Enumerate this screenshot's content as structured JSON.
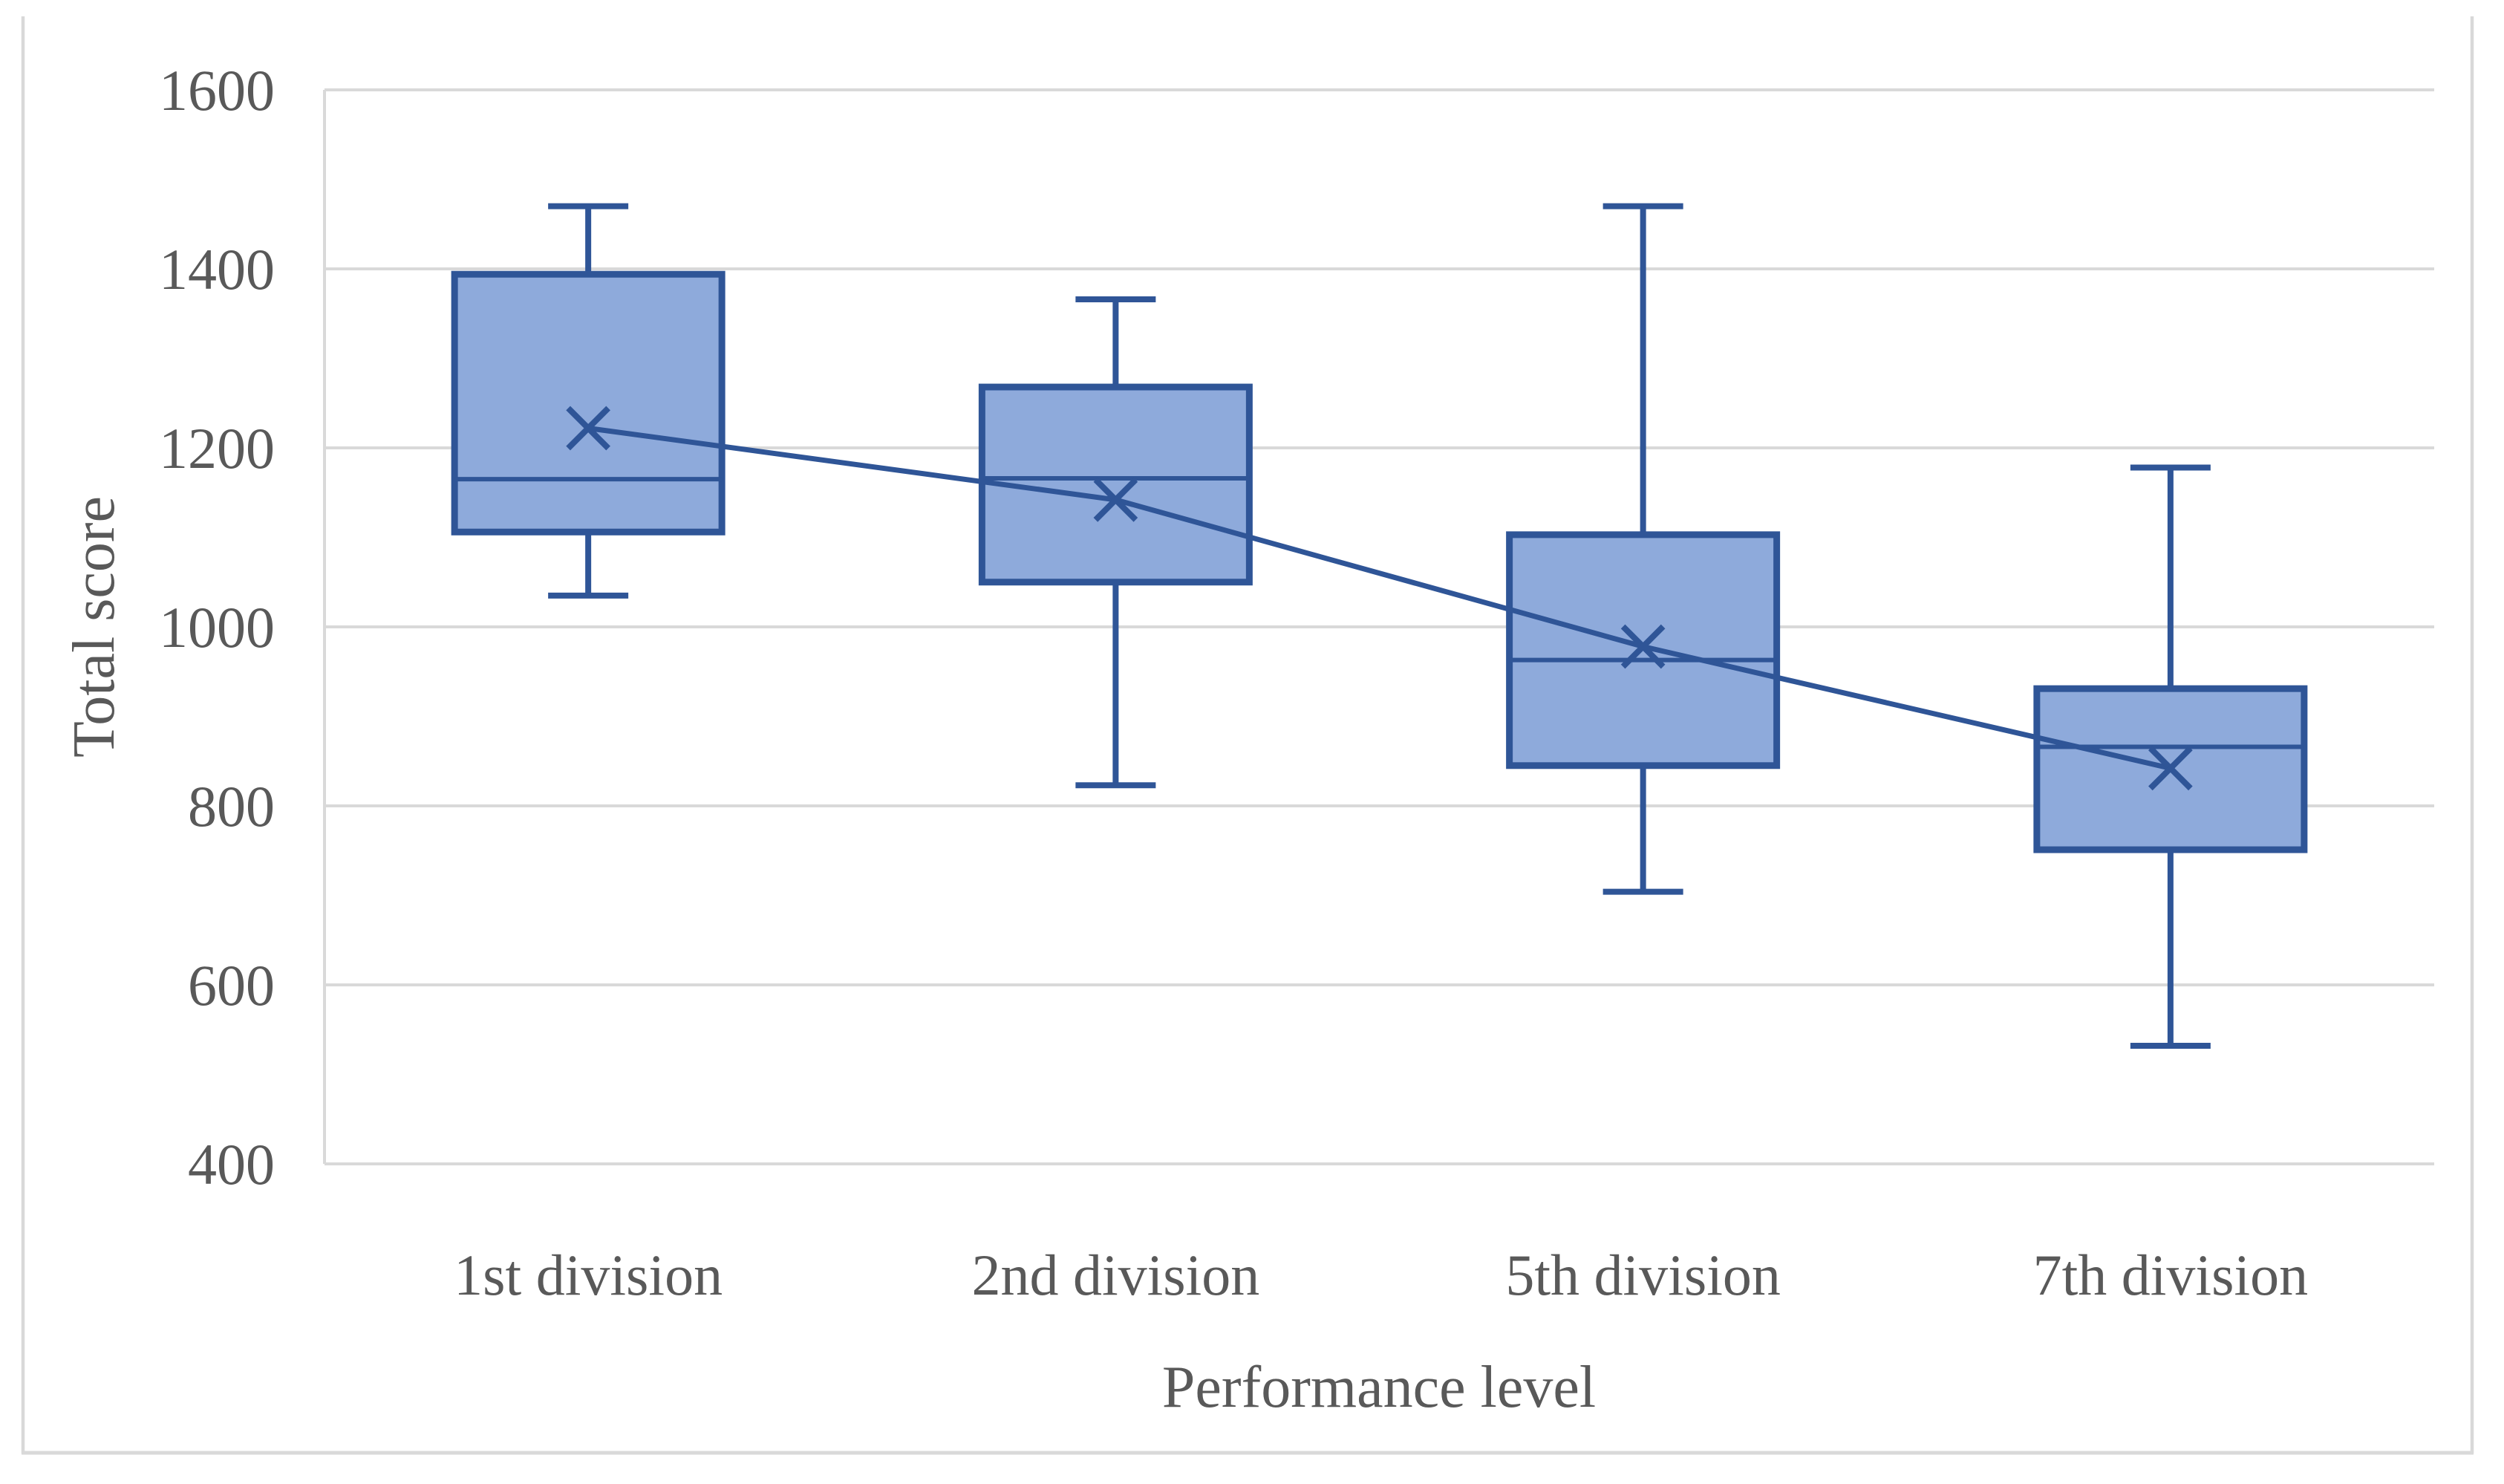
{
  "figure": {
    "background_color": "#ffffff",
    "frame_border_color": "#d9d9d9"
  },
  "chart_data": {
    "type": "boxplot",
    "title": "",
    "xlabel": "Performance level",
    "ylabel": "Total score",
    "categories": [
      "1st division",
      "2nd division",
      "5th division",
      "7th division"
    ],
    "series": [
      {
        "name": "1st division",
        "min": 1035,
        "q1": 1106,
        "median": 1165,
        "mean": 1222,
        "q3": 1394,
        "max": 1470
      },
      {
        "name": "2nd division",
        "min": 823,
        "q1": 1050,
        "median": 1166,
        "mean": 1142,
        "q3": 1268,
        "max": 1366
      },
      {
        "name": "5th division",
        "min": 704,
        "q1": 845,
        "median": 963,
        "mean": 978,
        "q3": 1103,
        "max": 1470
      },
      {
        "name": "7th division",
        "min": 532,
        "q1": 751,
        "median": 866,
        "mean": 842,
        "q3": 931,
        "max": 1178
      }
    ],
    "y_ticks": [
      1600,
      1400,
      1200,
      1000,
      800,
      600,
      400
    ],
    "ylim": [
      400,
      1600
    ],
    "grid": "horizontal",
    "legend": "none",
    "mean_marker": "x",
    "mean_connector_line": true,
    "colors": {
      "box_fill": "#8eaadb",
      "box_border": "#2f5597",
      "whisker": "#2f5597",
      "median_line": "#2f5597",
      "mean_marker": "#2f5597",
      "mean_line": "#2f5597",
      "gridline": "#d9d9d9",
      "axis_line": "#d9d9d9",
      "tick_text": "#595959"
    }
  }
}
